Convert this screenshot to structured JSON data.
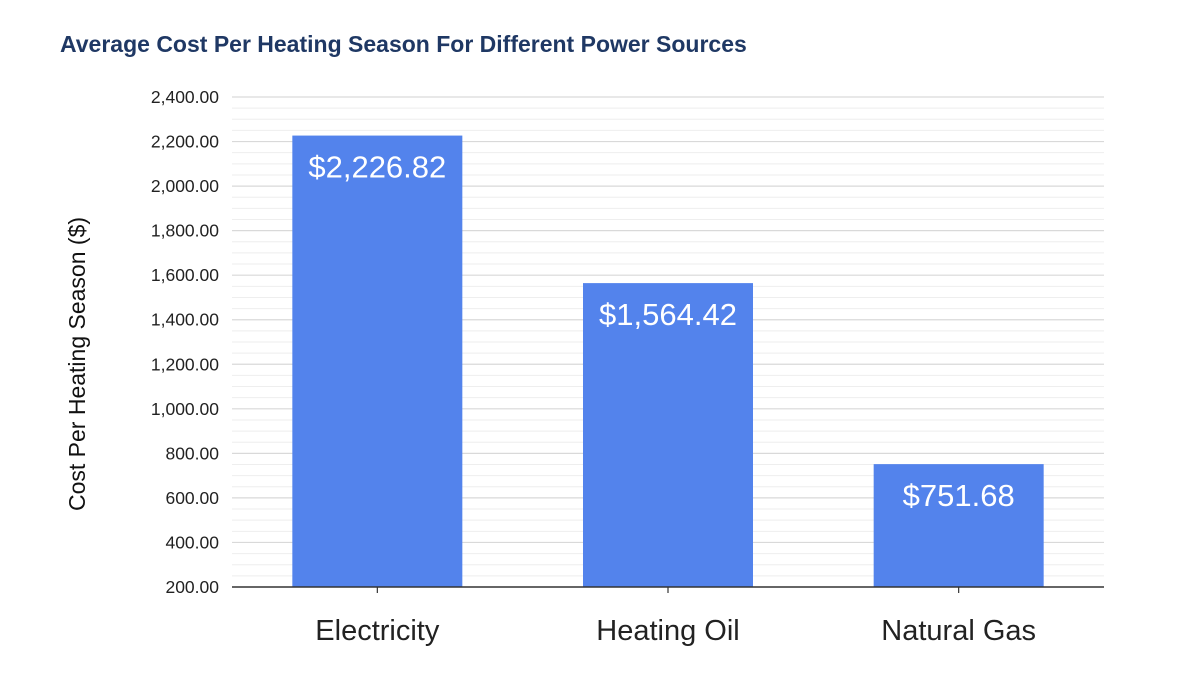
{
  "chart_data": {
    "type": "bar",
    "title": "Average Cost Per Heating Season For Different Power Sources",
    "xlabel": "",
    "ylabel": "Cost Per Heating Season ($)",
    "categories": [
      "Electricity",
      "Heating Oil",
      "Natural Gas"
    ],
    "values": [
      2226.82,
      1564.42,
      751.68
    ],
    "data_labels": [
      "$2,226.82",
      "$1,564.42",
      "$751.68"
    ],
    "ylim": [
      200,
      2400
    ],
    "yticks": [
      200,
      400,
      600,
      800,
      1000,
      1200,
      1400,
      1600,
      1800,
      2000,
      2200,
      2400
    ],
    "ytick_labels": [
      "200.00",
      "400.00",
      "600.00",
      "800.00",
      "1,000.00",
      "1,200.00",
      "1,400.00",
      "1,600.00",
      "1,800.00",
      "2,000.00",
      "2,200.00",
      "2,400.00"
    ],
    "grid": true,
    "minor_grid": true,
    "legend": "none",
    "colors": {
      "bar": "#5383ec",
      "major_grid": "#d9d9d9",
      "minor_grid": "#eeeeee",
      "axis": "#333333",
      "title": "#1f3864"
    }
  }
}
